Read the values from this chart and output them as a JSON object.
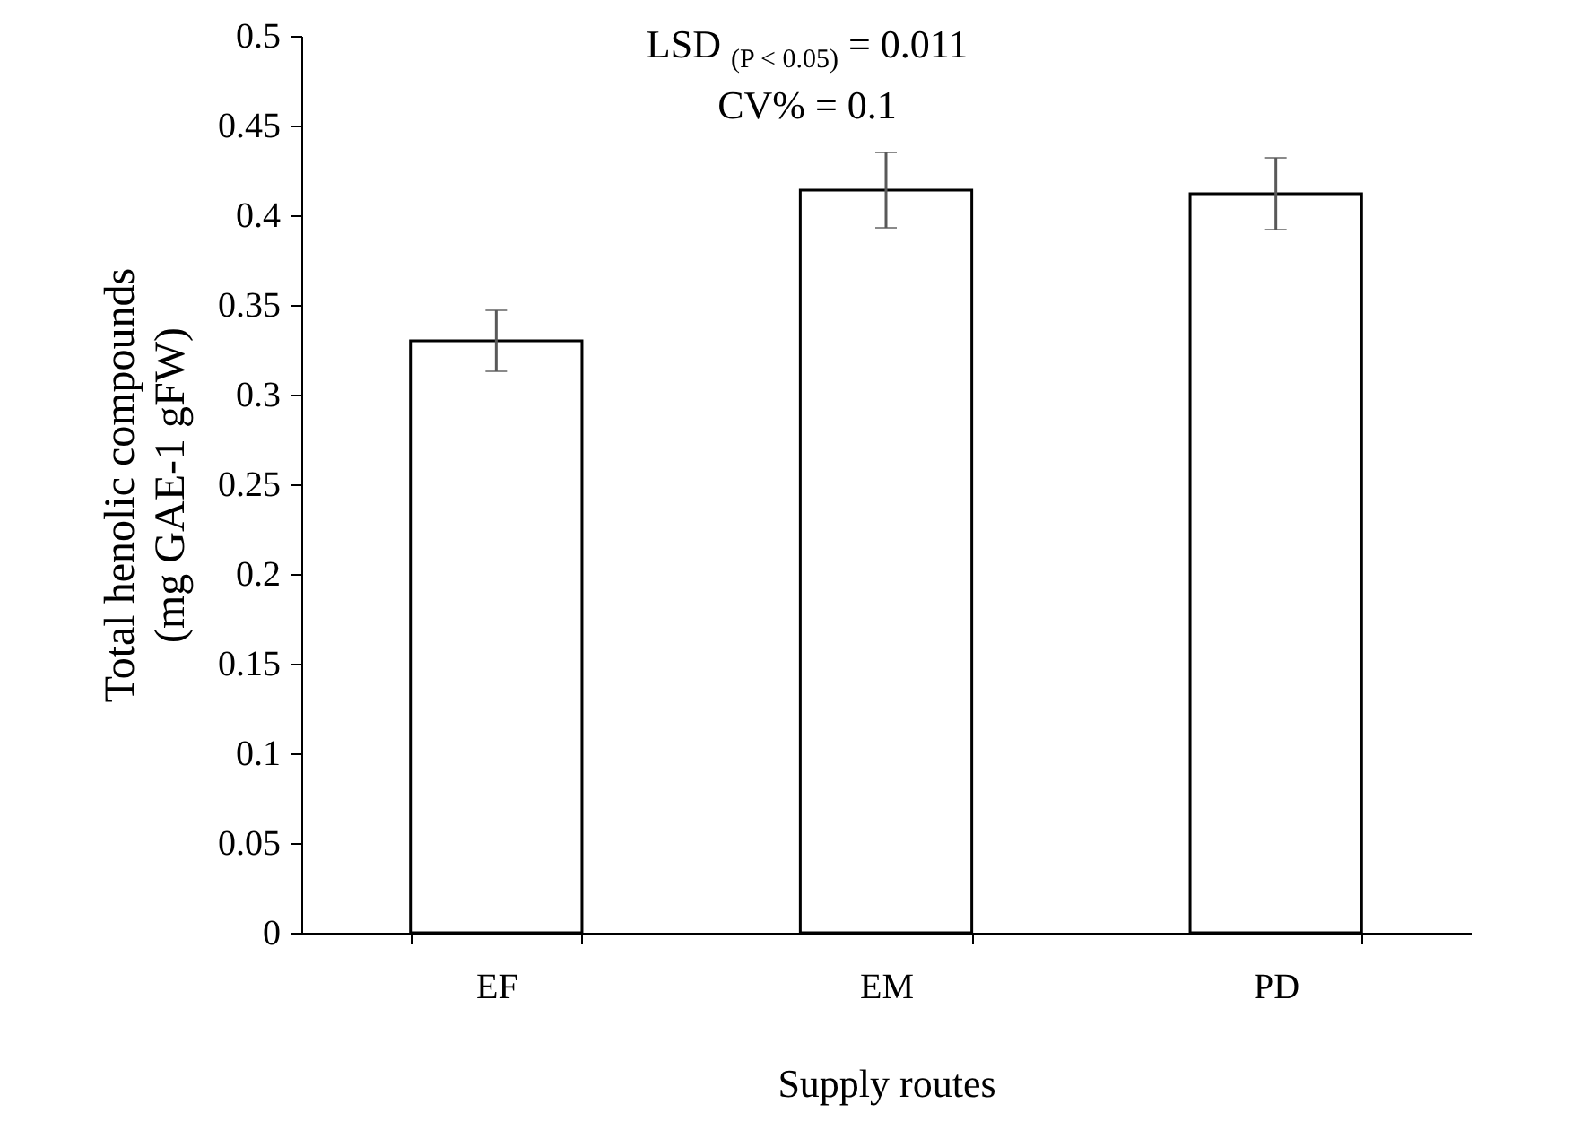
{
  "chart_data": {
    "type": "bar",
    "xlabel": "Supply routes",
    "ylabel": "Total henolic compounds\n(mg GAE-1 gFW)",
    "categories": [
      "EF",
      "EM",
      "PD"
    ],
    "values": [
      0.33,
      0.414,
      0.412
    ],
    "errors": [
      0.017,
      0.021,
      0.02
    ],
    "color": "#ffffff",
    "ylim": [
      0,
      0.5
    ],
    "yticks": [
      0,
      0.05,
      0.1,
      0.15,
      0.2,
      0.25,
      0.3,
      0.35,
      0.4,
      0.45,
      0.5
    ],
    "grid": false,
    "annotations": [
      "LSD $_{(P < 0.05)}$ = 0.011",
      "CV% = 0.1"
    ]
  }
}
